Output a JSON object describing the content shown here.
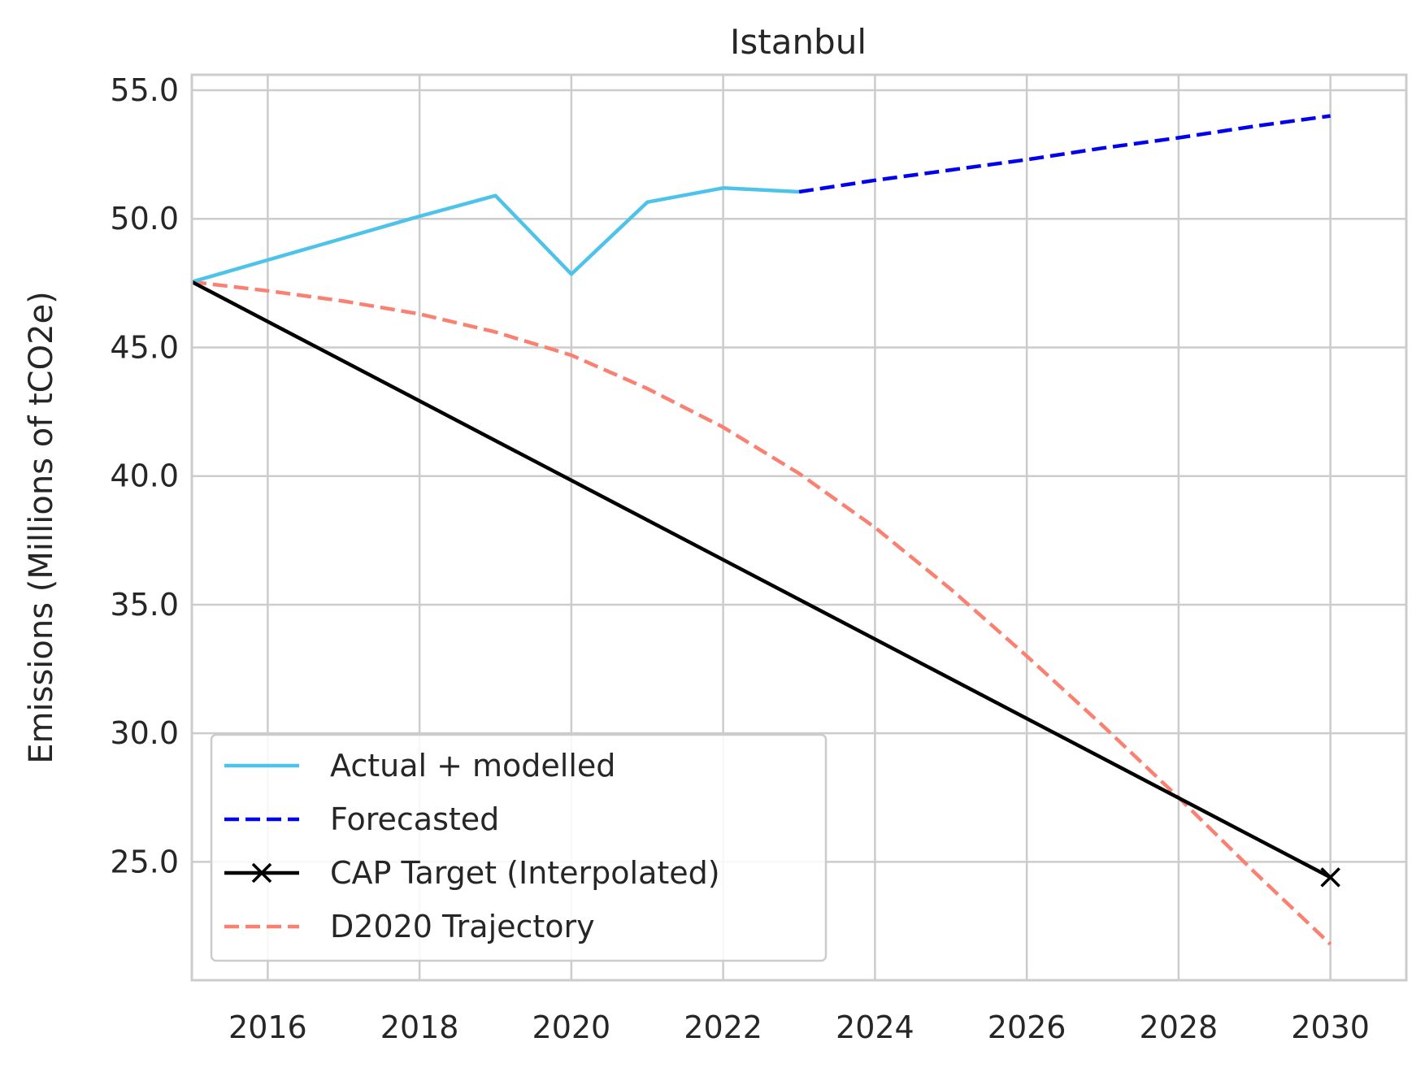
{
  "chart_data": {
    "type": "line",
    "title": "Istanbul",
    "xlabel": "",
    "ylabel": "Emissions (Millions of tCO2e)",
    "xlim": [
      2015,
      2031
    ],
    "ylim": [
      20.4,
      55.6
    ],
    "xticks": [
      2016,
      2018,
      2020,
      2022,
      2024,
      2026,
      2028,
      2030
    ],
    "yticks": [
      25.0,
      30.0,
      35.0,
      40.0,
      45.0,
      50.0,
      55.0
    ],
    "grid": true,
    "legend_position": "lower-left",
    "series": [
      {
        "name": "Actual + modelled",
        "color": "#4ec3ea",
        "style": "solid",
        "x": [
          2015,
          2016,
          2017,
          2018,
          2019,
          2020,
          2021,
          2022,
          2023
        ],
        "y": [
          47.55,
          48.4,
          49.25,
          50.1,
          50.9,
          47.85,
          50.65,
          51.2,
          51.05
        ]
      },
      {
        "name": "Forecasted",
        "color": "#0000ee",
        "style": "dashed",
        "x": [
          2023,
          2024,
          2025,
          2026,
          2027,
          2028,
          2029,
          2030
        ],
        "y": [
          51.05,
          51.5,
          51.9,
          52.3,
          52.75,
          53.15,
          53.6,
          54.0
        ]
      },
      {
        "name": "CAP Target (Interpolated)",
        "color": "#000000",
        "style": "solid",
        "marker_end": "x",
        "x": [
          2015,
          2030
        ],
        "y": [
          47.55,
          24.4
        ]
      },
      {
        "name": "D2020 Trajectory",
        "color": "#fa8072",
        "style": "dashed",
        "x": [
          2015,
          2016,
          2017,
          2018,
          2019,
          2020,
          2021,
          2022,
          2023,
          2024,
          2025,
          2026,
          2027,
          2028,
          2029,
          2030
        ],
        "y": [
          47.55,
          47.2,
          46.8,
          46.3,
          45.6,
          44.7,
          43.4,
          41.9,
          40.1,
          38.0,
          35.6,
          33.0,
          30.3,
          27.5,
          24.6,
          21.8
        ]
      }
    ]
  }
}
